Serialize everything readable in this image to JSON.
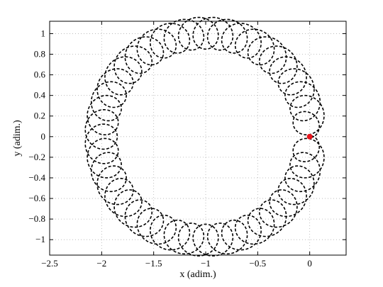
{
  "chart_data": {
    "type": "line",
    "title": "",
    "xlabel": "x (adim.)",
    "ylabel": "y (adim.)",
    "xlim": [
      -2.5,
      0.35
    ],
    "ylim": [
      -1.15,
      1.12
    ],
    "xticks": [
      -2.5,
      -2,
      -1.5,
      -1,
      -0.5,
      0
    ],
    "xtick_labels": [
      "−2.5",
      "−2",
      "−1.5",
      "−1",
      "−0.5",
      "0"
    ],
    "yticks": [
      -1,
      -0.8,
      -0.6,
      -0.4,
      -0.2,
      0,
      0.2,
      0.4,
      0.6,
      0.8,
      1
    ],
    "ytick_labels": [
      "−1",
      "−0.8",
      "−0.6",
      "−0.4",
      "−0.2",
      "0",
      "0.2",
      "0.4",
      "0.6",
      "0.8",
      "1"
    ],
    "grid": true,
    "series": [
      {
        "style": "dashed",
        "color": "#000000",
        "description_of_shape": "epicyclic trajectory",
        "center": [
          -1.0,
          0.0
        ],
        "mean_radius": 1.0,
        "inner_radius": 0.85,
        "outer_radius": 1.16,
        "loops": 45,
        "start_angle_deg": 0,
        "end_angle_deg": 360
      }
    ],
    "markers": [
      {
        "x": 0.0,
        "y": 0.0,
        "color": "#e8141d"
      }
    ]
  }
}
